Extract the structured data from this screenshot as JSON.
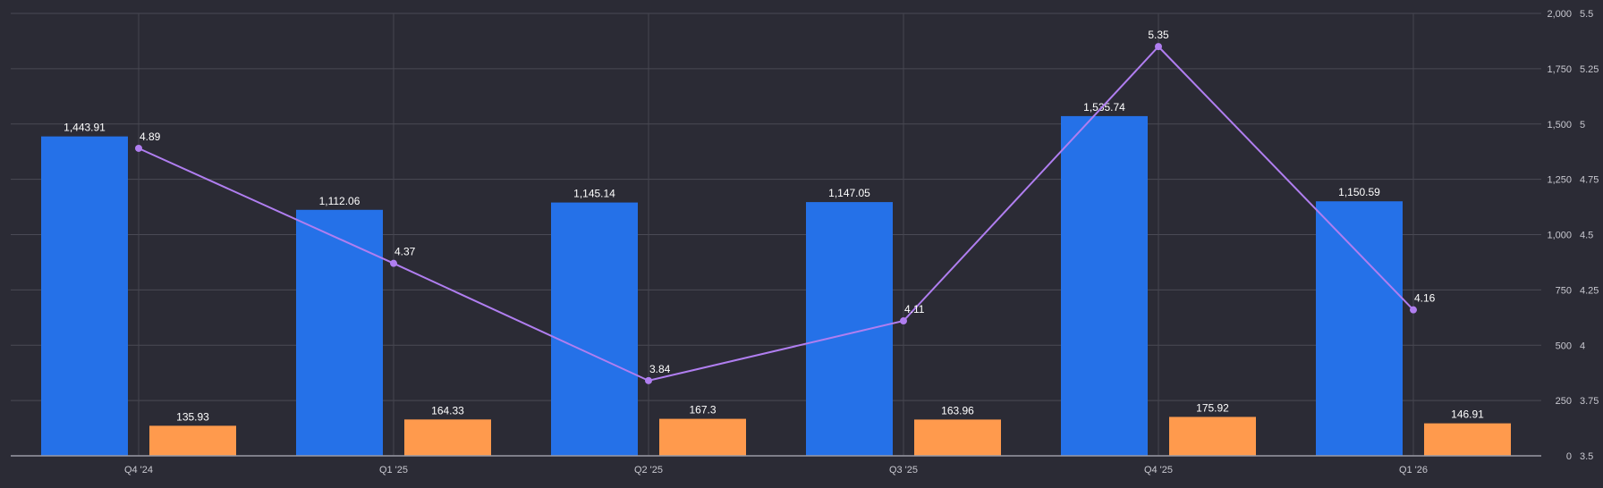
{
  "chart_data": {
    "type": "bar",
    "categories": [
      "Q4 '24",
      "Q1 '25",
      "Q2 '25",
      "Q3 '25",
      "Q4 '25",
      "Q1 '26"
    ],
    "series": [
      {
        "values": [
          1443.91,
          1112.06,
          1145.14,
          1147.05,
          1535.74,
          1150.59
        ],
        "color": "#2571e8",
        "type": "bar",
        "axis": "primary",
        "labels": [
          "1,443.91",
          "1,112.06",
          "1,145.14",
          "1,147.05",
          "1,535.74",
          "1,150.59"
        ]
      },
      {
        "values": [
          135.93,
          164.33,
          167.3,
          163.96,
          175.92,
          146.91
        ],
        "color": "#ff9a4d",
        "type": "bar",
        "axis": "primary",
        "labels": [
          "135.93",
          "164.33",
          "167.3",
          "163.96",
          "175.92",
          "146.91"
        ]
      },
      {
        "values": [
          4.89,
          4.37,
          3.84,
          4.11,
          5.35,
          4.16
        ],
        "color": "#b07ef0",
        "type": "line",
        "axis": "secondary",
        "labels": [
          "4.89",
          "4.37",
          "3.84",
          "4.11",
          "5.35",
          "4.16"
        ]
      }
    ],
    "y_primary": {
      "ylim": [
        0,
        2000
      ],
      "ticks": [
        0,
        250,
        500,
        750,
        1000,
        1250,
        1500,
        1750,
        2000
      ],
      "tick_labels": [
        "0",
        "250",
        "500",
        "750",
        "1,000",
        "1,250",
        "1,500",
        "1,750",
        "2,000"
      ]
    },
    "y_secondary": {
      "ylim": [
        3.5,
        5.5
      ],
      "ticks": [
        3.5,
        3.75,
        4,
        4.25,
        4.5,
        4.75,
        5,
        5.25,
        5.5
      ],
      "tick_labels": [
        "3.5",
        "3.75",
        "4",
        "4.25",
        "4.5",
        "4.75",
        "5",
        "5.25",
        "5.5"
      ]
    },
    "grid": true,
    "legend": "none"
  }
}
